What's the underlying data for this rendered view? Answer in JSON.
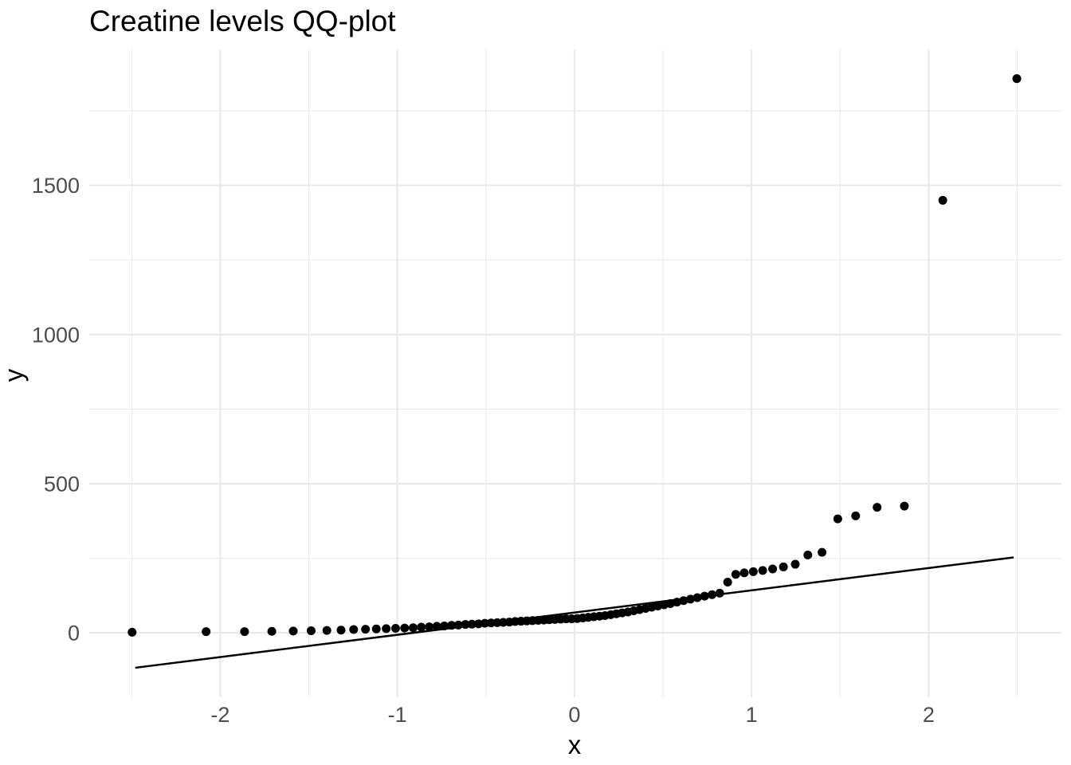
{
  "chart": {
    "title": "Creatine levels QQ-plot",
    "xlabel": "x",
    "ylabel": "y"
  },
  "chart_data": {
    "type": "scatter",
    "title": "Creatine levels QQ-plot",
    "xlabel": "x",
    "ylabel": "y",
    "xlim": [
      -2.74,
      2.75
    ],
    "ylim": [
      -216,
      1956
    ],
    "x_major_ticks": [
      -2,
      -1,
      0,
      1,
      2
    ],
    "x_minor_gridlines": [
      -2.5,
      -1.5,
      -0.5,
      0.5,
      1.5,
      2.5
    ],
    "y_major_ticks": [
      0,
      500,
      1000,
      1500
    ],
    "y_minor_gridlines": [
      250,
      750,
      1250,
      1750
    ],
    "grid": true,
    "legend": false,
    "point_radius": 5.5,
    "colors": {
      "background": "#ffffff",
      "gridline": "#e8e8e8",
      "point": "#000000",
      "line": "#000000",
      "tick_label": "#4d4d4d",
      "axis_title": "#000000",
      "title": "#000000"
    },
    "reference_line": {
      "x1": -2.48,
      "y1": -117,
      "x2": 2.48,
      "y2": 253,
      "intercept": 68,
      "slope": 74.6
    },
    "points": [
      [
        -2.498,
        2
      ],
      [
        -2.08,
        4
      ],
      [
        -1.863,
        4
      ],
      [
        -1.709,
        5
      ],
      [
        -1.588,
        6
      ],
      [
        -1.487,
        7
      ],
      [
        -1.398,
        8
      ],
      [
        -1.318,
        9
      ],
      [
        -1.247,
        11
      ],
      [
        -1.18,
        12
      ],
      [
        -1.119,
        13
      ],
      [
        -1.063,
        14
      ],
      [
        -1.01,
        15
      ],
      [
        -0.959,
        16
      ],
      [
        -0.911,
        17
      ],
      [
        -0.865,
        19
      ],
      [
        -0.82,
        20
      ],
      [
        -0.777,
        22
      ],
      [
        -0.735,
        23
      ],
      [
        -0.694,
        25
      ],
      [
        -0.655,
        26
      ],
      [
        -0.616,
        28
      ],
      [
        -0.579,
        29
      ],
      [
        -0.542,
        30
      ],
      [
        -0.506,
        32
      ],
      [
        -0.471,
        33
      ],
      [
        -0.436,
        34
      ],
      [
        -0.402,
        35
      ],
      [
        -0.368,
        36
      ],
      [
        -0.335,
        38
      ],
      [
        -0.302,
        39
      ],
      [
        -0.269,
        40
      ],
      [
        -0.237,
        41
      ],
      [
        -0.205,
        42
      ],
      [
        -0.173,
        43
      ],
      [
        -0.142,
        44
      ],
      [
        -0.11,
        45
      ],
      [
        -0.078,
        46
      ],
      [
        -0.047,
        47
      ],
      [
        -0.016,
        47
      ],
      [
        0.016,
        48
      ],
      [
        0.047,
        50
      ],
      [
        0.078,
        52
      ],
      [
        0.11,
        54
      ],
      [
        0.142,
        56
      ],
      [
        0.173,
        58
      ],
      [
        0.205,
        61
      ],
      [
        0.237,
        64
      ],
      [
        0.269,
        67
      ],
      [
        0.302,
        70
      ],
      [
        0.335,
        74
      ],
      [
        0.368,
        78
      ],
      [
        0.402,
        82
      ],
      [
        0.436,
        86
      ],
      [
        0.471,
        90
      ],
      [
        0.506,
        94
      ],
      [
        0.542,
        98
      ],
      [
        0.579,
        103
      ],
      [
        0.616,
        108
      ],
      [
        0.655,
        113
      ],
      [
        0.694,
        118
      ],
      [
        0.735,
        123
      ],
      [
        0.777,
        128
      ],
      [
        0.82,
        133
      ],
      [
        0.865,
        170
      ],
      [
        0.911,
        196
      ],
      [
        0.959,
        201
      ],
      [
        1.01,
        205
      ],
      [
        1.063,
        209
      ],
      [
        1.119,
        214
      ],
      [
        1.18,
        221
      ],
      [
        1.247,
        230
      ],
      [
        1.318,
        261
      ],
      [
        1.398,
        270
      ],
      [
        1.487,
        382
      ],
      [
        1.588,
        392
      ],
      [
        1.709,
        421
      ],
      [
        1.863,
        425
      ],
      [
        2.08,
        1450
      ],
      [
        2.498,
        1858
      ]
    ]
  }
}
